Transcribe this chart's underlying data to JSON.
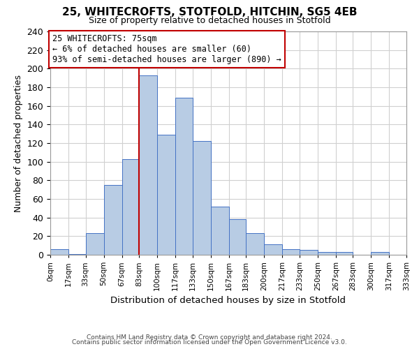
{
  "title": "25, WHITECROFTS, STOTFOLD, HITCHIN, SG5 4EB",
  "subtitle": "Size of property relative to detached houses in Stotfold",
  "xlabel": "Distribution of detached houses by size in Stotfold",
  "ylabel": "Number of detached properties",
  "bin_edges": [
    0,
    17,
    33,
    50,
    67,
    83,
    100,
    117,
    133,
    150,
    167,
    183,
    200,
    217,
    233,
    250,
    267,
    283,
    300,
    317,
    333
  ],
  "bin_labels": [
    "0sqm",
    "17sqm",
    "33sqm",
    "50sqm",
    "67sqm",
    "83sqm",
    "100sqm",
    "117sqm",
    "133sqm",
    "150sqm",
    "167sqm",
    "183sqm",
    "200sqm",
    "217sqm",
    "233sqm",
    "250sqm",
    "267sqm",
    "283sqm",
    "300sqm",
    "317sqm",
    "333sqm"
  ],
  "counts": [
    6,
    1,
    23,
    75,
    103,
    193,
    129,
    169,
    122,
    52,
    38,
    23,
    11,
    6,
    5,
    3,
    3,
    0,
    3,
    0
  ],
  "bar_color": "#b8cce4",
  "bar_edge_color": "#4472c4",
  "vline_x": 83,
  "vline_color": "#c00000",
  "annotation_line1": "25 WHITECROFTS: 75sqm",
  "annotation_line2": "← 6% of detached houses are smaller (60)",
  "annotation_line3": "93% of semi-detached houses are larger (890) →",
  "annotation_box_color": "#ffffff",
  "annotation_box_edge_color": "#c00000",
  "yticks": [
    0,
    20,
    40,
    60,
    80,
    100,
    120,
    140,
    160,
    180,
    200,
    220,
    240
  ],
  "ylim": [
    0,
    240
  ],
  "footer1": "Contains HM Land Registry data © Crown copyright and database right 2024.",
  "footer2": "Contains public sector information licensed under the Open Government Licence v3.0.",
  "background_color": "#ffffff",
  "grid_color": "#d0d0d0"
}
